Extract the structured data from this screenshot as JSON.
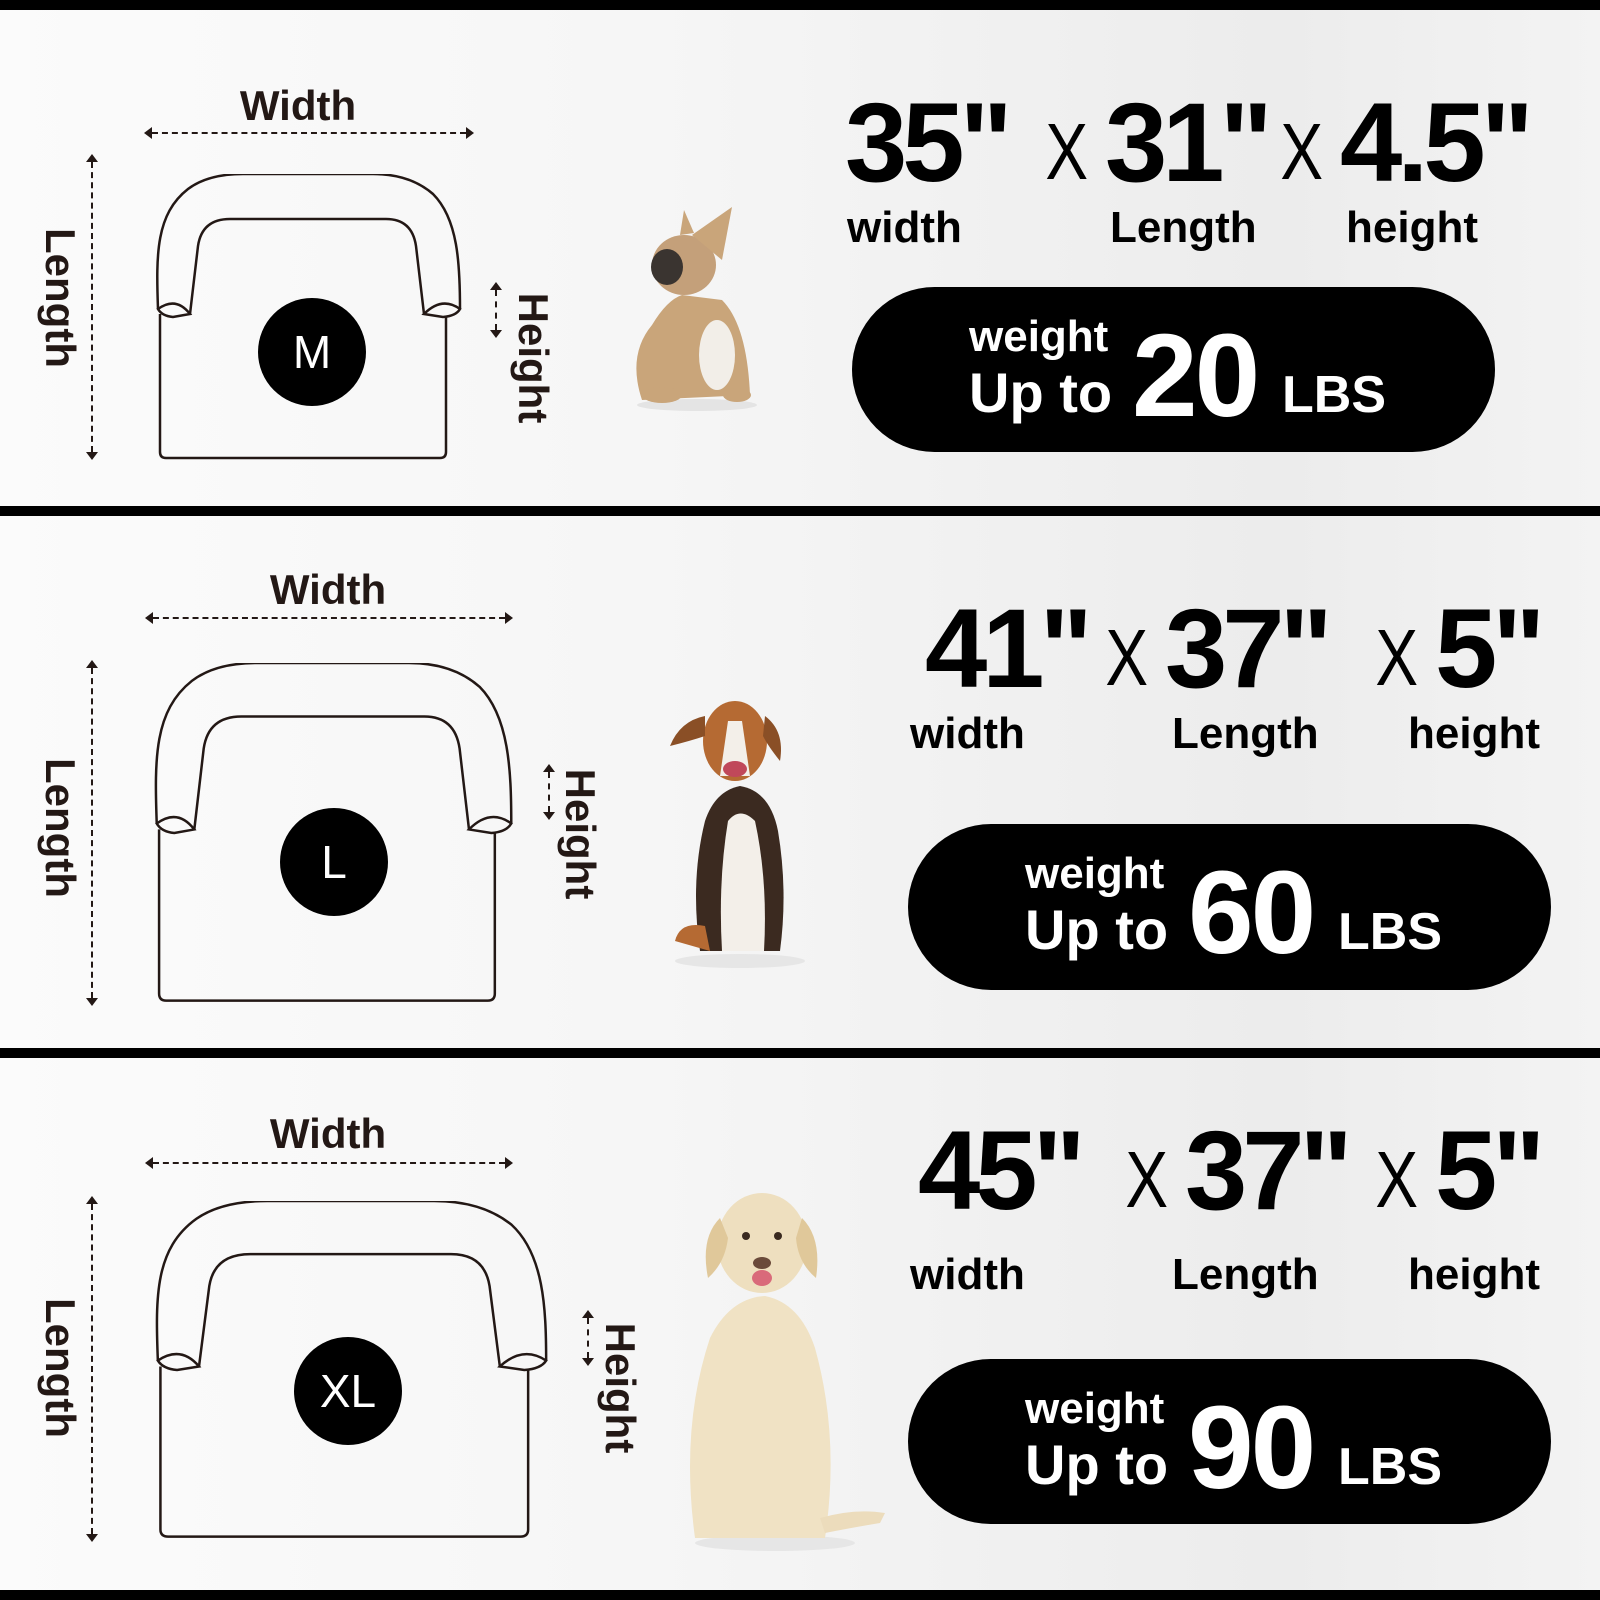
{
  "labels": {
    "width": "Width",
    "length": "Length",
    "height": "Height"
  },
  "sizes": [
    {
      "size": "M",
      "width": "35\"",
      "length": "31\"",
      "height": "4.5\"",
      "width_label": "width",
      "length_label": "Length",
      "height_label": "height",
      "times": "X",
      "weight_label": "weight",
      "up_to": "Up to",
      "weight": "20",
      "unit": "LBS",
      "dog": "french-bulldog"
    },
    {
      "size": "L",
      "width": "41\"",
      "length": "37\"",
      "height": "5\"",
      "width_label": "width",
      "length_label": "Length",
      "height_label": "height",
      "times": "X",
      "weight_label": "weight",
      "up_to": "Up to",
      "weight": "60",
      "unit": "LBS",
      "dog": "beagle"
    },
    {
      "size": "XL",
      "width": "45\"",
      "length": "37\"",
      "height": "5\"",
      "width_label": "width",
      "length_label": "Length",
      "height_label": "height",
      "times": "X",
      "weight_label": "weight",
      "up_to": "Up to",
      "weight": "90",
      "unit": "LBS",
      "dog": "labrador"
    }
  ],
  "colors": {
    "ink": "#231815",
    "pill": "#000000",
    "divider": "#000000"
  }
}
